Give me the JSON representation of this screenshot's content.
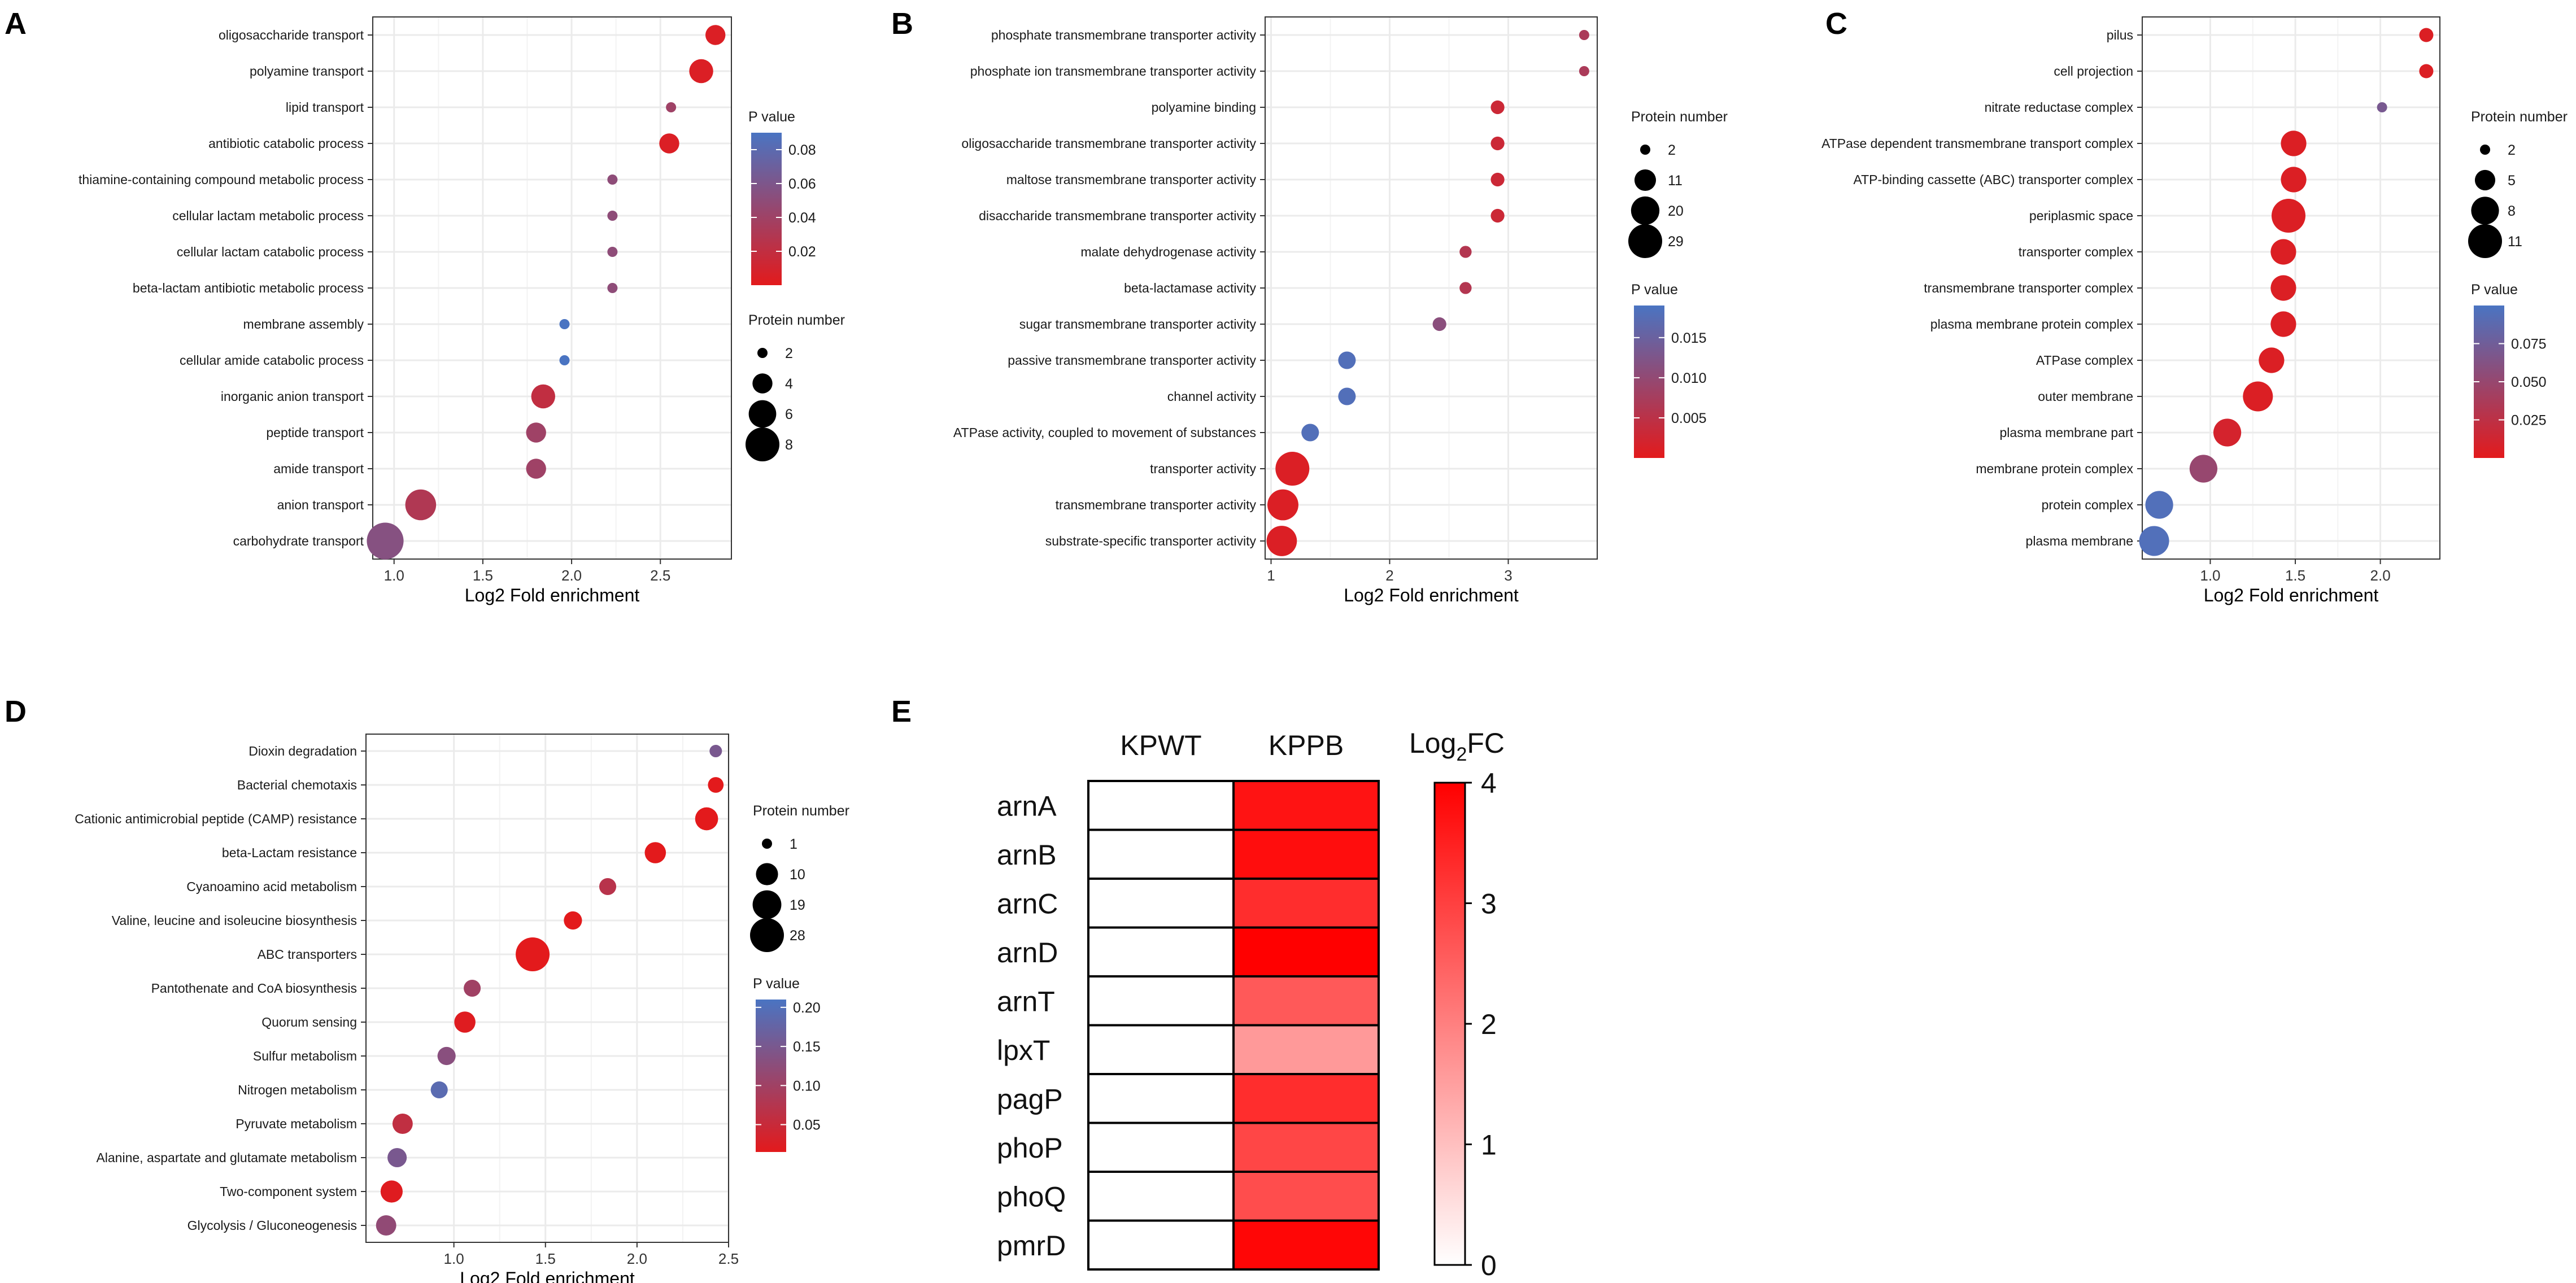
{
  "colors": {
    "low_p": "#e31a1c",
    "high_p": "#4a74c2",
    "grid": "#ebebeb",
    "panel_border": "#333333",
    "text": "#1a1a1a",
    "heat_max": "#ff0000",
    "heat_min": "#ffffff"
  },
  "chart_data": [
    {
      "panel": "A",
      "type": "scatter",
      "xlabel": "Log2 Fold enrichment",
      "xlim": [
        0.88,
        2.9
      ],
      "xticks": [
        1.0,
        1.5,
        2.0,
        2.5
      ],
      "xtick_labels": [
        "1.0",
        "1.5",
        "2.0",
        "2.5"
      ],
      "categories": [
        "oligosaccharide transport",
        "polyamine transport",
        "lipid transport",
        "antibiotic catabolic process",
        "thiamine-containing compound metabolic process",
        "cellular lactam metabolic process",
        "cellular lactam catabolic process",
        "beta-lactam antibiotic metabolic process",
        "membrane assembly",
        "cellular amide catabolic process",
        "inorganic anion transport",
        "peptide transport",
        "amide transport",
        "anion transport",
        "carbohydrate transport"
      ],
      "x": [
        2.81,
        2.73,
        2.56,
        2.55,
        2.23,
        2.23,
        2.23,
        2.23,
        1.96,
        1.96,
        1.84,
        1.8,
        1.8,
        1.15,
        0.95
      ],
      "protein_number": [
        4,
        5,
        2,
        4,
        2,
        2,
        2,
        2,
        2,
        2,
        5,
        4,
        4,
        7,
        9
      ],
      "p_value": [
        0.005,
        0.005,
        0.04,
        0.005,
        0.05,
        0.05,
        0.05,
        0.05,
        0.09,
        0.09,
        0.02,
        0.04,
        0.04,
        0.03,
        0.055
      ],
      "size_legend": {
        "title": "Protein number",
        "values": [
          2,
          4,
          6,
          8
        ],
        "labels": [
          "2",
          "4",
          "6",
          "8"
        ]
      },
      "color_legend": {
        "title": "P value",
        "min": 0,
        "max": 0.09,
        "ticks": [
          0.02,
          0.04,
          0.06,
          0.08
        ],
        "labels": [
          "0.02",
          "0.04",
          "0.06",
          "0.08"
        ]
      },
      "legend_order": "color-first"
    },
    {
      "panel": "B",
      "type": "scatter",
      "xlabel": "Log2 Fold enrichment",
      "xlim": [
        0.95,
        3.75
      ],
      "xticks": [
        1,
        2,
        3
      ],
      "xtick_labels": [
        "1",
        "2",
        "3"
      ],
      "categories": [
        "phosphate transmembrane transporter activity",
        "phosphate ion transmembrane transporter activity",
        "polyamine binding",
        "oligosaccharide transmembrane transporter activity",
        "maltose transmembrane transporter activity",
        "disaccharide transmembrane transporter activity",
        "malate dehydrogenase activity",
        "beta-lactamase activity",
        "sugar transmembrane transporter activity",
        "passive transmembrane transporter activity",
        "channel activity",
        "ATPase activity, coupled to movement of substances",
        "transporter activity",
        "transmembrane transporter activity",
        "substrate-specific transporter activity"
      ],
      "x": [
        3.64,
        3.64,
        2.91,
        2.91,
        2.91,
        2.91,
        2.64,
        2.64,
        2.42,
        1.64,
        1.64,
        1.33,
        1.18,
        1.1,
        1.09
      ],
      "protein_number": [
        2,
        2,
        4,
        4,
        4,
        4,
        3,
        3,
        4,
        7,
        7,
        7,
        29,
        24,
        23
      ],
      "p_value": [
        0.007,
        0.007,
        0.003,
        0.003,
        0.003,
        0.003,
        0.006,
        0.006,
        0.011,
        0.018,
        0.018,
        0.018,
        0.001,
        0.001,
        0.001
      ],
      "size_legend": {
        "title": "Protein number",
        "values": [
          2,
          11,
          20,
          29
        ],
        "labels": [
          "2",
          "11",
          "20",
          "29"
        ]
      },
      "color_legend": {
        "title": "P value",
        "min": 0,
        "max": 0.019,
        "ticks": [
          0.005,
          0.01,
          0.015
        ],
        "labels": [
          "0.005",
          "0.010",
          "0.015"
        ]
      },
      "legend_order": "size-first"
    },
    {
      "panel": "C",
      "type": "scatter",
      "xlabel": "Log2 Fold enrichment",
      "xlim": [
        0.6,
        2.35
      ],
      "xticks": [
        1.0,
        1.5,
        2.0
      ],
      "xtick_labels": [
        "1.0",
        "1.5",
        "2.0"
      ],
      "categories": [
        "pilus",
        "cell projection",
        "nitrate reductase complex",
        "ATPase dependent transmembrane transport complex",
        "ATP-binding cassette (ABC) transporter complex",
        "periplasmic space",
        "transporter complex",
        "transmembrane transporter complex",
        "plasma membrane protein complex",
        "ATPase complex",
        "outer membrane",
        "plasma membrane part",
        "membrane protein complex",
        "protein complex",
        "plasma membrane"
      ],
      "x": [
        2.27,
        2.27,
        2.01,
        1.49,
        1.49,
        1.46,
        1.43,
        1.43,
        1.43,
        1.36,
        1.28,
        1.1,
        0.96,
        0.7,
        0.67
      ],
      "protein_number": [
        3,
        3,
        2,
        7,
        7,
        11,
        7,
        7,
        7,
        7,
        9,
        8,
        8,
        8,
        9
      ],
      "p_value": [
        0.005,
        0.005,
        0.07,
        0.005,
        0.005,
        0.005,
        0.005,
        0.005,
        0.005,
        0.005,
        0.005,
        0.01,
        0.05,
        0.095,
        0.095
      ],
      "size_legend": {
        "title": "Protein number",
        "values": [
          2,
          5,
          8,
          11
        ],
        "labels": [
          "2",
          "5",
          "8",
          "11"
        ]
      },
      "color_legend": {
        "title": "P value",
        "min": 0,
        "max": 0.1,
        "ticks": [
          0.025,
          0.05,
          0.075
        ],
        "labels": [
          "0.025",
          "0.050",
          "0.075"
        ]
      },
      "legend_order": "size-first"
    },
    {
      "panel": "D",
      "type": "scatter",
      "xlabel": "Log2 Fold enrichment",
      "xlim": [
        0.52,
        2.5
      ],
      "xticks": [
        1.0,
        1.5,
        2.0,
        2.5
      ],
      "xtick_labels": [
        "1.0",
        "1.5",
        "2.0",
        "2.5"
      ],
      "categories": [
        "Dioxin degradation",
        "Bacterial chemotaxis",
        "Cationic antimicrobial peptide (CAMP) resistance",
        "beta-Lactam resistance",
        "Cyanoamino acid metabolism",
        "Valine, leucine and isoleucine biosynthesis",
        "ABC transporters",
        "Pantothenate and CoA biosynthesis",
        "Quorum sensing",
        "Sulfur metabolism",
        "Nitrogen metabolism",
        "Pyruvate metabolism",
        "Alanine, aspartate and glutamate metabolism",
        "Two-component system",
        "Glycolysis / Gluconeogenesis"
      ],
      "x": [
        2.43,
        2.43,
        2.38,
        2.1,
        1.84,
        1.65,
        1.43,
        1.1,
        1.06,
        0.96,
        0.92,
        0.72,
        0.69,
        0.66,
        0.63
      ],
      "protein_number": [
        2,
        4,
        11,
        9,
        5,
        6,
        28,
        5,
        9,
        6,
        5,
        8,
        7,
        10,
        8
      ],
      "p_value": [
        0.15,
        0.01,
        0.01,
        0.01,
        0.07,
        0.01,
        0.01,
        0.1,
        0.02,
        0.13,
        0.19,
        0.06,
        0.15,
        0.02,
        0.12
      ],
      "size_legend": {
        "title": "Protein number",
        "values": [
          1,
          10,
          19,
          28
        ],
        "labels": [
          "1",
          "10",
          "19",
          "28"
        ]
      },
      "color_legend": {
        "title": "P value",
        "min": 0.015,
        "max": 0.21,
        "ticks": [
          0.05,
          0.1,
          0.15,
          0.2
        ],
        "labels": [
          "0.05",
          "0.10",
          "0.15",
          "0.20"
        ]
      },
      "legend_order": "size-first"
    },
    {
      "panel": "E",
      "type": "heatmap",
      "columns": [
        "KPWT",
        "KPPB"
      ],
      "rows": [
        "arnA",
        "arnB",
        "arnC",
        "arnD",
        "arnT",
        "lpxT",
        "pagP",
        "phoP",
        "phoQ",
        "pmrD"
      ],
      "values": [
        [
          0,
          3.7
        ],
        [
          0,
          3.8
        ],
        [
          0,
          3.3
        ],
        [
          0,
          4.0
        ],
        [
          0,
          2.6
        ],
        [
          0,
          1.6
        ],
        [
          0,
          3.3
        ],
        [
          0,
          2.9
        ],
        [
          0,
          2.8
        ],
        [
          0,
          3.9
        ]
      ],
      "legend": {
        "title_main": "Log",
        "title_sub": "2",
        "title_suffix": "FC",
        "min": 0,
        "max": 4,
        "ticks": [
          0,
          1,
          2,
          3,
          4
        ],
        "labels": [
          "0",
          "1",
          "2",
          "3",
          "4"
        ]
      }
    }
  ]
}
